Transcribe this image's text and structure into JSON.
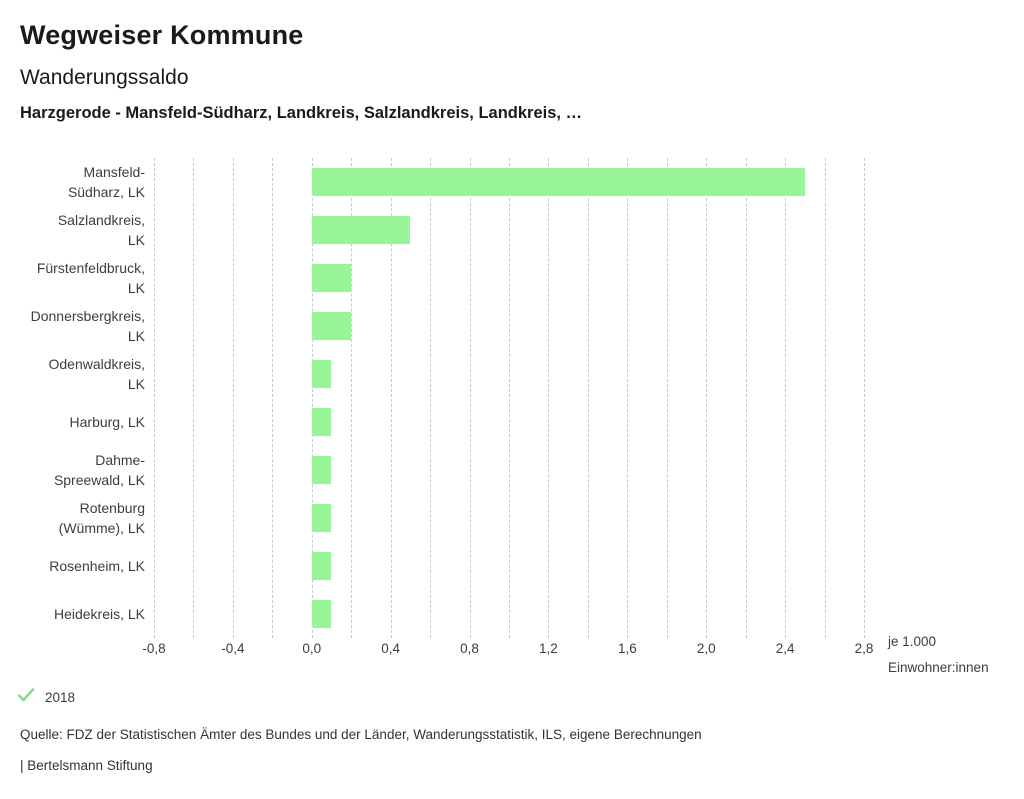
{
  "header": {
    "app_title": "Wegweiser Kommune",
    "chart_title": "Wanderungssaldo",
    "comparison_subtitle": "Harzgerode - Mansfeld-Südharz, Landkreis, Salzlandkreis, Landkreis, …"
  },
  "chart_data": {
    "type": "bar",
    "orientation": "horizontal",
    "title": "Wanderungssaldo",
    "xlabel": "je 1.000 Einwohner:innen",
    "unit_label_lines": [
      "je 1.000",
      "Einwohner:innen"
    ],
    "series_name": "2018",
    "categories": [
      "Mansfeld-Südharz, LK",
      "Salzlandkreis, LK",
      "Fürstenfeldbruck, LK",
      "Donnersbergkreis, LK",
      "Odenwaldkreis, LK",
      "Harburg, LK",
      "Dahme-Spreewald, LK",
      "Rotenburg (Wümme), LK",
      "Rosenheim, LK",
      "Heidekreis, LK"
    ],
    "category_label_lines": [
      [
        "Mansfeld-",
        "Südharz, LK"
      ],
      [
        "Salzlandkreis,",
        "LK"
      ],
      [
        "Fürstenfeldbruck,",
        "LK"
      ],
      [
        "Donnersbergkreis,",
        "LK"
      ],
      [
        "Odenwaldkreis,",
        "LK"
      ],
      [
        "Harburg, LK"
      ],
      [
        "Dahme-",
        "Spreewald, LK"
      ],
      [
        "Rotenburg",
        "(Wümme), LK"
      ],
      [
        "Rosenheim, LK"
      ],
      [
        "Heidekreis, LK"
      ]
    ],
    "values": [
      2.5,
      0.5,
      0.2,
      0.2,
      0.1,
      0.1,
      0.1,
      0.1,
      0.1,
      0.1
    ],
    "xlim": [
      -0.8,
      2.8
    ],
    "grid": true,
    "grid_step": 0.2,
    "x_ticks": [
      -0.8,
      -0.4,
      0.0,
      0.4,
      0.8,
      1.2,
      1.6,
      2.0,
      2.4,
      2.8
    ],
    "x_tick_labels": [
      "-0,8",
      "-0,4",
      "0,0",
      "0,4",
      "0,8",
      "1,2",
      "1,6",
      "2,0",
      "2,4",
      "2,8"
    ],
    "legend_position": "bottom-left"
  },
  "legend": {
    "items": [
      {
        "icon": "check-icon",
        "label": "2018"
      }
    ]
  },
  "footer": {
    "source": "Quelle: FDZ der Statistischen Ämter des Bundes und der Länder, Wanderungsstatistik, ILS, eigene Berechnungen",
    "attribution": "| Bertelsmann Stiftung"
  },
  "colors": {
    "bar": "#98f698",
    "grid": "#c9c9c9",
    "check": "#8bdb8b",
    "title_text": "#1a1a1a",
    "label_text": "#3d3d3d"
  }
}
